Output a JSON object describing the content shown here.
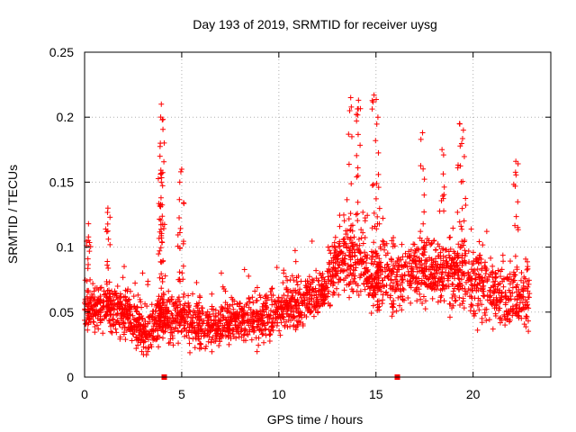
{
  "chart_data": {
    "type": "scatter",
    "title": "Day 193 of 2019, SRMTID for receiver uysg",
    "xlabel": "GPS time / hours",
    "ylabel": "SRMTID / TECUs",
    "xlim": [
      0,
      24
    ],
    "ylim": [
      0,
      0.25
    ],
    "xticks": [
      0,
      5,
      10,
      15,
      20
    ],
    "xtick_labels": [
      "0",
      "5",
      "10",
      "15",
      "20"
    ],
    "yticks": [
      0,
      0.05,
      0.1,
      0.15,
      0.2,
      0.25
    ],
    "ytick_labels": [
      "0",
      "0.05",
      "0.1",
      "0.15",
      "0.2",
      "0.25"
    ],
    "grid": true,
    "marker": "+",
    "series": [
      {
        "name": "SRMTID",
        "color": "#ff0000",
        "description_of_trend": "hourly approximate band center values",
        "trend_x": [
          0,
          1,
          2,
          3,
          4,
          5,
          6,
          7,
          8,
          9,
          10,
          11,
          12,
          12.5,
          13,
          13.5,
          14,
          15,
          16,
          17,
          18,
          19,
          20,
          21,
          22,
          23
        ],
        "trend_y": [
          0.05,
          0.055,
          0.05,
          0.035,
          0.045,
          0.045,
          0.038,
          0.04,
          0.045,
          0.045,
          0.05,
          0.055,
          0.065,
          0.07,
          0.085,
          0.09,
          0.09,
          0.075,
          0.075,
          0.08,
          0.08,
          0.08,
          0.07,
          0.065,
          0.06,
          0.06
        ],
        "spike_points": [
          {
            "x": 3.95,
            "y": 0.21
          },
          {
            "x": 4.0,
            "y": 0.198
          },
          {
            "x": 3.9,
            "y": 0.18
          },
          {
            "x": 3.95,
            "y": 0.15
          },
          {
            "x": 5.0,
            "y": 0.16
          },
          {
            "x": 4.9,
            "y": 0.15
          },
          {
            "x": 13.7,
            "y": 0.215
          },
          {
            "x": 14.1,
            "y": 0.213
          },
          {
            "x": 14.9,
            "y": 0.217
          },
          {
            "x": 15.1,
            "y": 0.2
          },
          {
            "x": 17.4,
            "y": 0.188
          },
          {
            "x": 19.3,
            "y": 0.195
          },
          {
            "x": 19.5,
            "y": 0.19
          },
          {
            "x": 22.2,
            "y": 0.166
          },
          {
            "x": 18.4,
            "y": 0.175
          },
          {
            "x": 0.2,
            "y": 0.118
          },
          {
            "x": 1.2,
            "y": 0.13
          }
        ],
        "zero_points": [
          {
            "x": 4.1,
            "y": 0.0
          },
          {
            "x": 16.1,
            "y": 0.0
          }
        ]
      }
    ]
  }
}
